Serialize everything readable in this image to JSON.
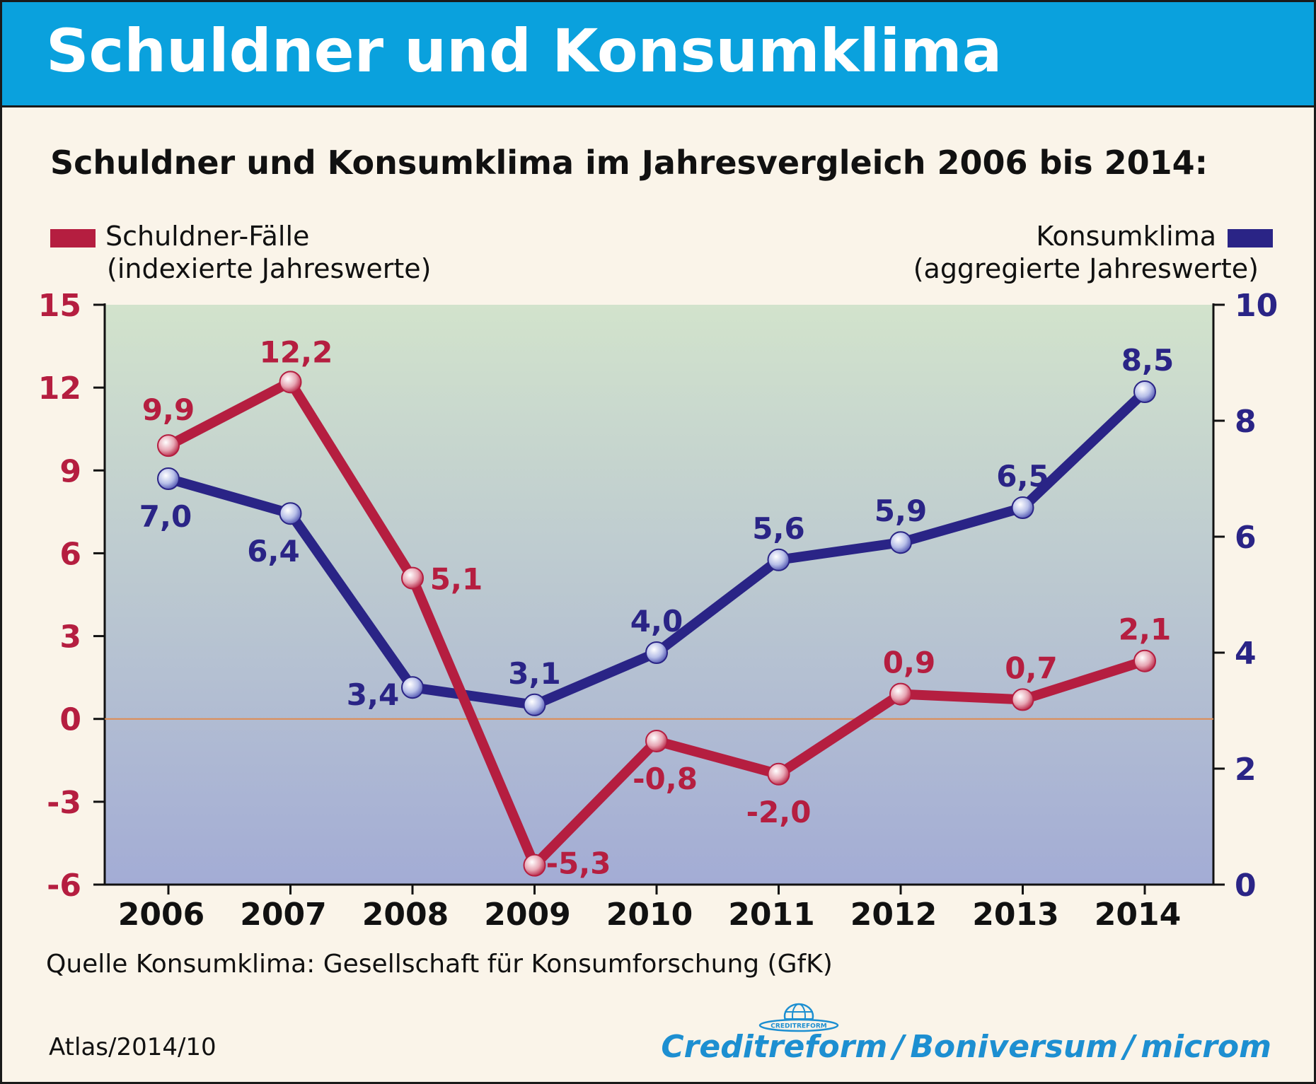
{
  "header": {
    "title": "Schuldner und Konsumklima"
  },
  "subtitle": "Schuldner und Konsumklima im Jahresvergleich 2006 bis 2014:",
  "legend": {
    "left": {
      "line1": "Schuldner-Fälle",
      "line2": "(indexierte Jahreswerte)"
    },
    "right": {
      "line1": "Konsumklima",
      "line2": "(aggregierte Jahreswerte)"
    }
  },
  "colors": {
    "schuldner": "#b51e40",
    "konsumklima": "#2a2486",
    "zero_line": "#e08a50",
    "plot_top": "#d2e3cc",
    "plot_bottom": "#a3acd5",
    "brand": "#1d8fd1"
  },
  "chart_data": {
    "type": "line",
    "categories": [
      "2006",
      "2007",
      "2008",
      "2009",
      "2010",
      "2011",
      "2012",
      "2013",
      "2014"
    ],
    "series": [
      {
        "name": "Schuldner-Fälle",
        "axis": "left",
        "values": [
          9.9,
          12.2,
          5.1,
          -5.3,
          -0.8,
          -2.0,
          0.9,
          0.7,
          2.1
        ],
        "labels": [
          "9,9",
          "12,2",
          "5,1",
          "-5,3",
          "-0,8",
          "-2,0",
          "0,9",
          "0,7",
          "2,1"
        ]
      },
      {
        "name": "Konsumklima",
        "axis": "right",
        "values": [
          7.0,
          6.4,
          3.4,
          3.1,
          4.0,
          5.6,
          5.9,
          6.5,
          8.5
        ],
        "labels": [
          "7,0",
          "6,4",
          "3,4",
          "3,1",
          "4,0",
          "5,6",
          "5,9",
          "6,5",
          "8,5"
        ]
      }
    ],
    "y_left": {
      "range": [
        -6,
        15
      ],
      "ticks": [
        15,
        12,
        9,
        6,
        3,
        0,
        -3,
        -6
      ],
      "tick_labels": [
        "15",
        "12",
        "9",
        "6",
        "3",
        "0",
        "-3",
        "-6"
      ]
    },
    "y_right": {
      "range": [
        0,
        10
      ],
      "ticks": [
        10,
        8,
        6,
        4,
        2,
        0
      ],
      "tick_labels": [
        "10",
        "8",
        "6",
        "4",
        "2",
        "0"
      ]
    },
    "zero_line": true,
    "grid": false,
    "legend_placement": "top"
  },
  "footer": {
    "source": "Quelle Konsumklima: Gesellschaft für Konsumforschung (GfK)",
    "atlas": "Atlas/2014/10",
    "brand": {
      "part1": "Creditreform",
      "part2": "Boniversum",
      "part3": "microm",
      "sep": "/",
      "globe_text": "CREDITREFORM"
    }
  }
}
